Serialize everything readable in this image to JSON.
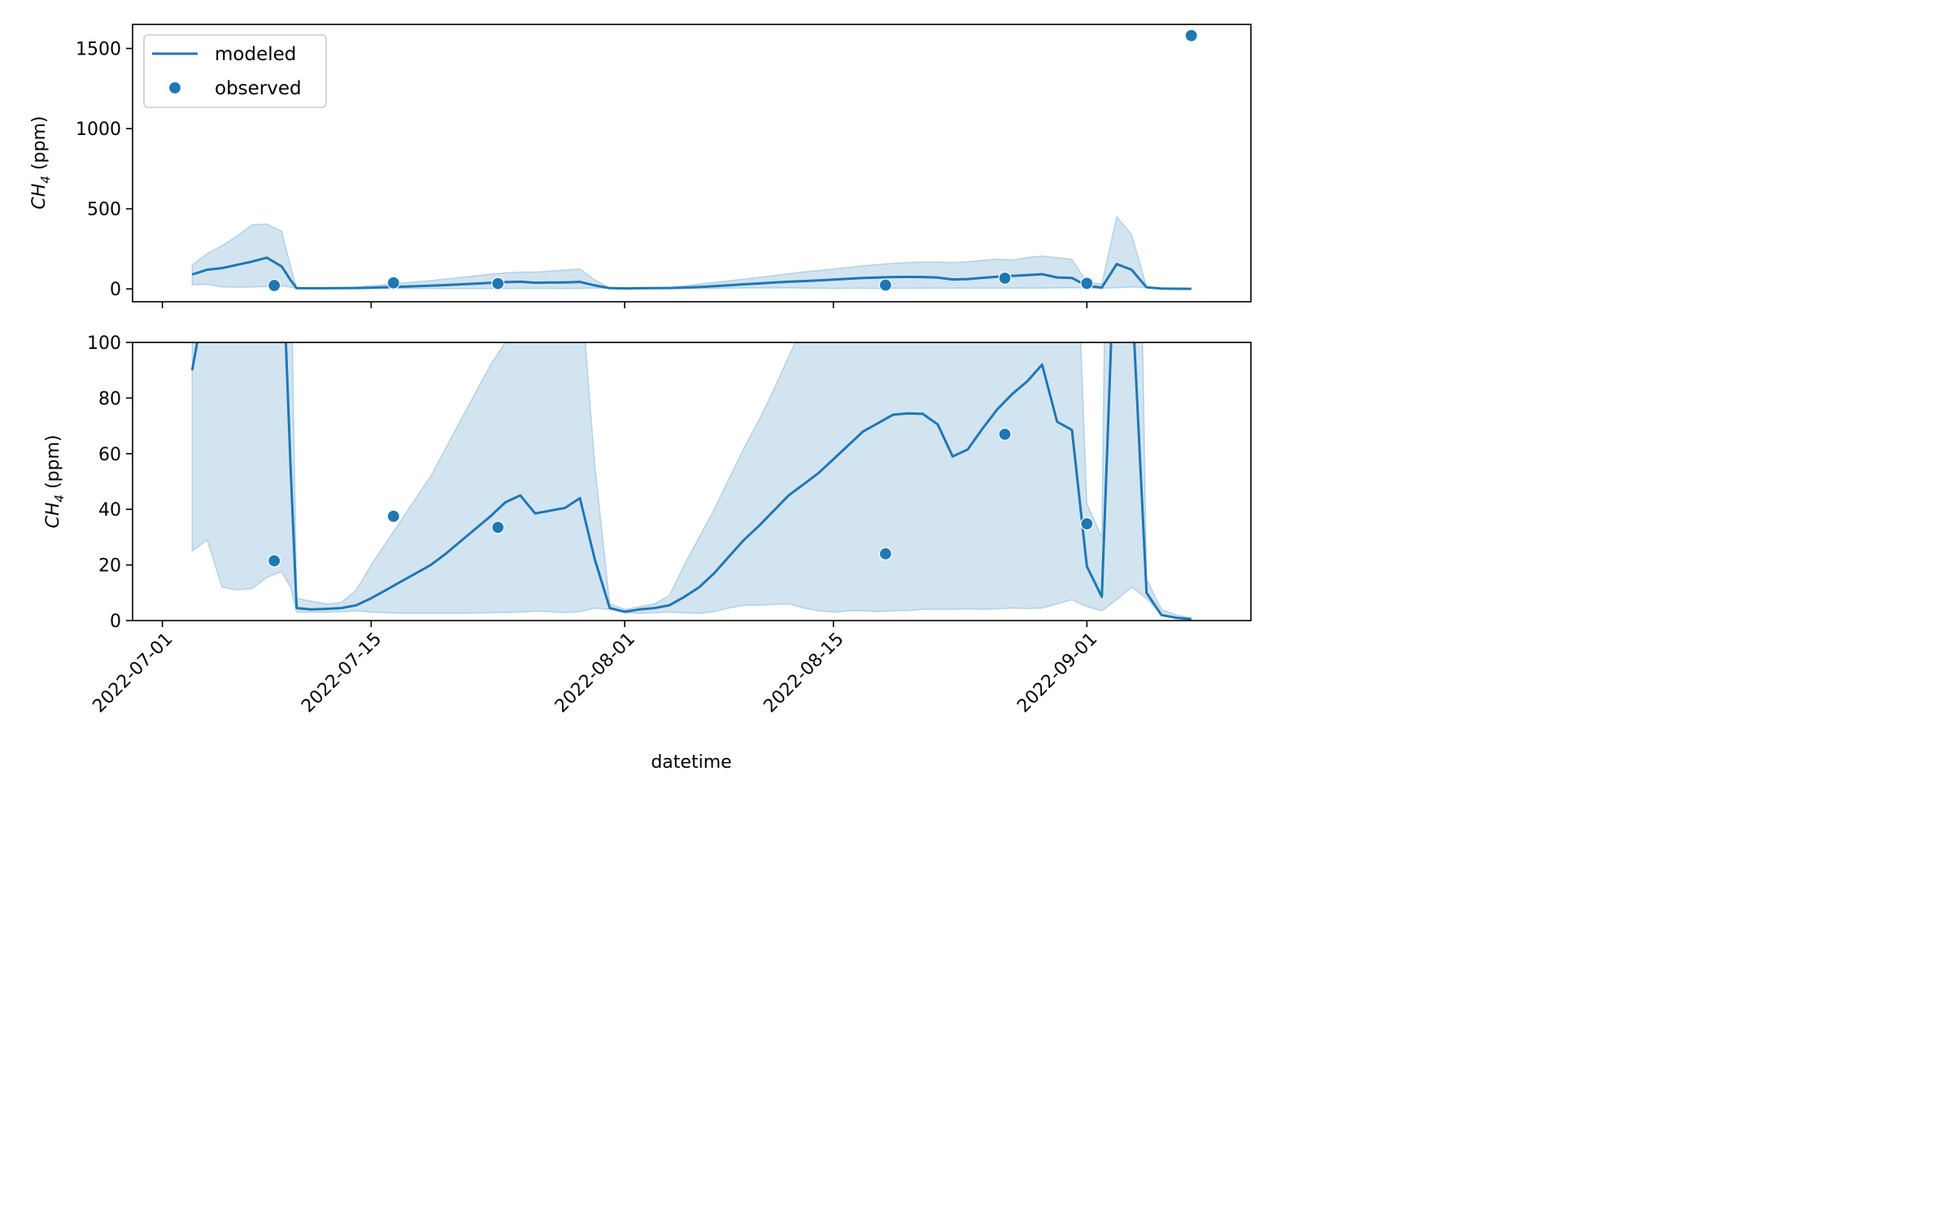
{
  "chart_data": [
    {
      "type": "line",
      "panel": "top",
      "ylabel": "CH4 (ppm)",
      "ylabel_base": "CH",
      "ylabel_sub": "4",
      "ylabel_unit": " (ppm)",
      "ylim": [
        -80,
        1650
      ],
      "yticks": [
        0,
        500,
        1000,
        1500
      ],
      "legend": {
        "placement": "upper-left",
        "entries": [
          "modeled",
          "observed"
        ]
      },
      "grid": false
    },
    {
      "type": "line",
      "panel": "bottom",
      "xlabel": "datetime",
      "ylabel": "CH4 (ppm)",
      "ylabel_base": "CH",
      "ylabel_sub": "4",
      "ylabel_unit": " (ppm)",
      "ylim": [
        0,
        100
      ],
      "yticks": [
        0,
        20,
        40,
        60,
        80,
        100
      ],
      "grid": false
    }
  ],
  "x_axis": {
    "domain_start": "2022-06-29",
    "domain_end": "2022-09-12",
    "ticks": [
      "2022-07-01",
      "2022-07-15",
      "2022-08-01",
      "2022-08-15",
      "2022-09-01"
    ]
  },
  "series": {
    "modeled": {
      "name": "modeled",
      "color": "#1f77b4",
      "points": [
        [
          "2022-07-03",
          90
        ],
        [
          "2022-07-04",
          120
        ],
        [
          "2022-07-05",
          130
        ],
        [
          "2022-07-06",
          150
        ],
        [
          "2022-07-07",
          170
        ],
        [
          "2022-07-08",
          195
        ],
        [
          "2022-07-09",
          140
        ],
        [
          "2022-07-09.6",
          55
        ],
        [
          "2022-07-10",
          4.5
        ],
        [
          "2022-07-11",
          4
        ],
        [
          "2022-07-12",
          4.2
        ],
        [
          "2022-07-13",
          4.5
        ],
        [
          "2022-07-14",
          5.5
        ],
        [
          "2022-07-15",
          8
        ],
        [
          "2022-07-16",
          11
        ],
        [
          "2022-07-17",
          14
        ],
        [
          "2022-07-18",
          17
        ],
        [
          "2022-07-19",
          20
        ],
        [
          "2022-07-20",
          24
        ],
        [
          "2022-07-21",
          28.5
        ],
        [
          "2022-07-22",
          33
        ],
        [
          "2022-07-23",
          37.5
        ],
        [
          "2022-07-24",
          42.5
        ],
        [
          "2022-07-25",
          45
        ],
        [
          "2022-07-26",
          38.5
        ],
        [
          "2022-07-27",
          39.5
        ],
        [
          "2022-07-28",
          40.5
        ],
        [
          "2022-07-29",
          44
        ],
        [
          "2022-07-30",
          22
        ],
        [
          "2022-07-31",
          4.5
        ],
        [
          "2022-08-01",
          3.2
        ],
        [
          "2022-08-02",
          4
        ],
        [
          "2022-08-03",
          4.5
        ],
        [
          "2022-08-04",
          5.5
        ],
        [
          "2022-08-05",
          8.5
        ],
        [
          "2022-08-06",
          12
        ],
        [
          "2022-08-07",
          17
        ],
        [
          "2022-08-08",
          23
        ],
        [
          "2022-08-09",
          29
        ],
        [
          "2022-08-10",
          34
        ],
        [
          "2022-08-11",
          39.5
        ],
        [
          "2022-08-12",
          45
        ],
        [
          "2022-08-13",
          49
        ],
        [
          "2022-08-14",
          53
        ],
        [
          "2022-08-15",
          58
        ],
        [
          "2022-08-16",
          63
        ],
        [
          "2022-08-17",
          68
        ],
        [
          "2022-08-18",
          71
        ],
        [
          "2022-08-19",
          74
        ],
        [
          "2022-08-20",
          74.5
        ],
        [
          "2022-08-21",
          74.3
        ],
        [
          "2022-08-22",
          70.5
        ],
        [
          "2022-08-23",
          59
        ],
        [
          "2022-08-24",
          61.5
        ],
        [
          "2022-08-25",
          69
        ],
        [
          "2022-08-26",
          76
        ],
        [
          "2022-08-27",
          81.5
        ],
        [
          "2022-08-28",
          86
        ],
        [
          "2022-08-29",
          92
        ],
        [
          "2022-08-30",
          71.5
        ],
        [
          "2022-08-31",
          68.5
        ],
        [
          "2022-09-01",
          19.5
        ],
        [
          "2022-09-02",
          8.5
        ],
        [
          "2022-09-03",
          155
        ],
        [
          "2022-09-04",
          120
        ],
        [
          "2022-09-05",
          10
        ],
        [
          "2022-09-06",
          2
        ],
        [
          "2022-09-07",
          1
        ],
        [
          "2022-09-08",
          0.5
        ]
      ]
    },
    "band": {
      "color": "#1f77b4",
      "points": [
        [
          "2022-07-03",
          25,
          150
        ],
        [
          "2022-07-04",
          29,
          220
        ],
        [
          "2022-07-05",
          12,
          270
        ],
        [
          "2022-07-06",
          11,
          330
        ],
        [
          "2022-07-07",
          11.5,
          400
        ],
        [
          "2022-07-08",
          15.5,
          405
        ],
        [
          "2022-07-09",
          17.5,
          360
        ],
        [
          "2022-07-09.6",
          12,
          140
        ],
        [
          "2022-07-10",
          3,
          8
        ],
        [
          "2022-07-11",
          3,
          7
        ],
        [
          "2022-07-12",
          3,
          6
        ],
        [
          "2022-07-13",
          3.2,
          6.5
        ],
        [
          "2022-07-14",
          3.5,
          11
        ],
        [
          "2022-07-15",
          3,
          20
        ],
        [
          "2022-07-16",
          2.8,
          28
        ],
        [
          "2022-07-17",
          2.6,
          36
        ],
        [
          "2022-07-18",
          2.6,
          44
        ],
        [
          "2022-07-19",
          2.6,
          52
        ],
        [
          "2022-07-20",
          2.6,
          62
        ],
        [
          "2022-07-21",
          2.6,
          72
        ],
        [
          "2022-07-22",
          2.7,
          82
        ],
        [
          "2022-07-23",
          2.8,
          92
        ],
        [
          "2022-07-24",
          2.9,
          100
        ],
        [
          "2022-07-25",
          3,
          105
        ],
        [
          "2022-07-26",
          3.4,
          105
        ],
        [
          "2022-07-27",
          3.2,
          112
        ],
        [
          "2022-07-28",
          2.8,
          118
        ],
        [
          "2022-07-29",
          3.2,
          125
        ],
        [
          "2022-07-30",
          4.5,
          56
        ],
        [
          "2022-07-31",
          4,
          6
        ],
        [
          "2022-08-01",
          2.8,
          4
        ],
        [
          "2022-08-02",
          2.6,
          5
        ],
        [
          "2022-08-03",
          2.8,
          6
        ],
        [
          "2022-08-04",
          3,
          9
        ],
        [
          "2022-08-05",
          2.8,
          20
        ],
        [
          "2022-08-06",
          2.6,
          30
        ],
        [
          "2022-08-07",
          3.2,
          40
        ],
        [
          "2022-08-08",
          4.5,
          51
        ],
        [
          "2022-08-09",
          5.5,
          62
        ],
        [
          "2022-08-10",
          5.5,
          72
        ],
        [
          "2022-08-11",
          5.8,
          83
        ],
        [
          "2022-08-12",
          6,
          95
        ],
        [
          "2022-08-13",
          4.5,
          106
        ],
        [
          "2022-08-14",
          3.5,
          115
        ],
        [
          "2022-08-15",
          3,
          124
        ],
        [
          "2022-08-16",
          3.5,
          134
        ],
        [
          "2022-08-17",
          3.5,
          144
        ],
        [
          "2022-08-18",
          3.2,
          152
        ],
        [
          "2022-08-19",
          3.5,
          160
        ],
        [
          "2022-08-20",
          3.6,
          165
        ],
        [
          "2022-08-21",
          4,
          168
        ],
        [
          "2022-08-22",
          4,
          168
        ],
        [
          "2022-08-23",
          4,
          165
        ],
        [
          "2022-08-24",
          4.2,
          170
        ],
        [
          "2022-08-25",
          4,
          178
        ],
        [
          "2022-08-26",
          4.2,
          186
        ],
        [
          "2022-08-27",
          4.5,
          180
        ],
        [
          "2022-08-28",
          4.3,
          196
        ],
        [
          "2022-08-29",
          4.5,
          205
        ],
        [
          "2022-08-30",
          6,
          195
        ],
        [
          "2022-08-31",
          7.5,
          185
        ],
        [
          "2022-09-01",
          5,
          42
        ],
        [
          "2022-09-02",
          3.5,
          30
        ],
        [
          "2022-09-03",
          7.5,
          450
        ],
        [
          "2022-09-04",
          12,
          340
        ],
        [
          "2022-09-05",
          8,
          15
        ],
        [
          "2022-09-06",
          2,
          4
        ],
        [
          "2022-09-07",
          1,
          2
        ],
        [
          "2022-09-08",
          0.5,
          1
        ]
      ]
    },
    "observed": {
      "name": "observed",
      "color": "#1f77b4",
      "points": [
        [
          "2022-07-08.5",
          21.5
        ],
        [
          "2022-07-16.5",
          37.5
        ],
        [
          "2022-07-23.5",
          33.5
        ],
        [
          "2022-08-18.5",
          24
        ],
        [
          "2022-08-26.5",
          67
        ],
        [
          "2022-09-01",
          34.8
        ],
        [
          "2022-09-08",
          1580
        ]
      ]
    }
  }
}
